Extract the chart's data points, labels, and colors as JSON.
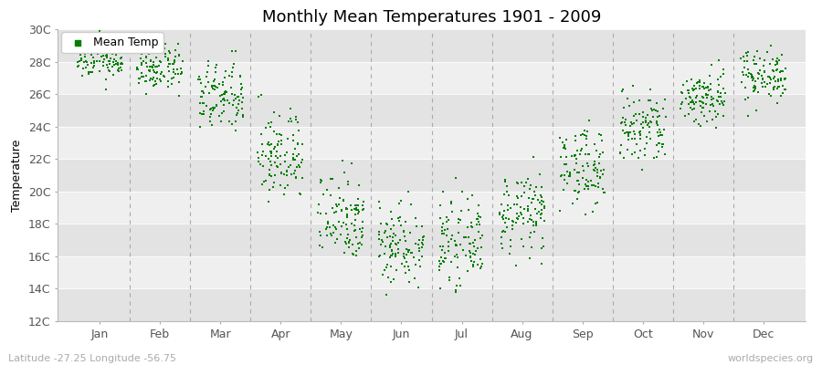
{
  "title": "Monthly Mean Temperatures 1901 - 2009",
  "ylabel": "Temperature",
  "xlabel_bottom_left": "Latitude -27.25 Longitude -56.75",
  "xlabel_bottom_right": "worldspecies.org",
  "ylim": [
    12,
    30
  ],
  "yticks": [
    12,
    14,
    16,
    18,
    20,
    22,
    24,
    26,
    28,
    30
  ],
  "ytick_labels": [
    "12C",
    "14C",
    "16C",
    "18C",
    "20C",
    "22C",
    "24C",
    "26C",
    "28C",
    "30C"
  ],
  "months": [
    "Jan",
    "Feb",
    "Mar",
    "Apr",
    "May",
    "Jun",
    "Jul",
    "Aug",
    "Sep",
    "Oct",
    "Nov",
    "Dec"
  ],
  "dot_color": "#008000",
  "dot_size": 3,
  "background_color": "#ffffff",
  "plot_bg_light": "#efefef",
  "plot_bg_dark": "#e3e3e3",
  "dashed_line_color": "#aaaaaa",
  "title_fontsize": 13,
  "axis_label_fontsize": 9,
  "tick_fontsize": 9,
  "n_years": 109,
  "monthly_mean_temps": [
    28.2,
    27.6,
    25.8,
    22.2,
    18.5,
    16.8,
    16.8,
    18.6,
    21.5,
    23.8,
    25.8,
    27.2
  ],
  "monthly_std_temps": [
    0.65,
    0.7,
    1.1,
    1.4,
    1.4,
    1.3,
    1.2,
    1.2,
    1.2,
    1.2,
    0.9,
    0.8
  ],
  "month_x_positions": [
    1,
    2,
    3,
    4,
    5,
    6,
    7,
    8,
    9,
    10,
    11,
    12
  ],
  "xlim": [
    0.3,
    12.7
  ]
}
